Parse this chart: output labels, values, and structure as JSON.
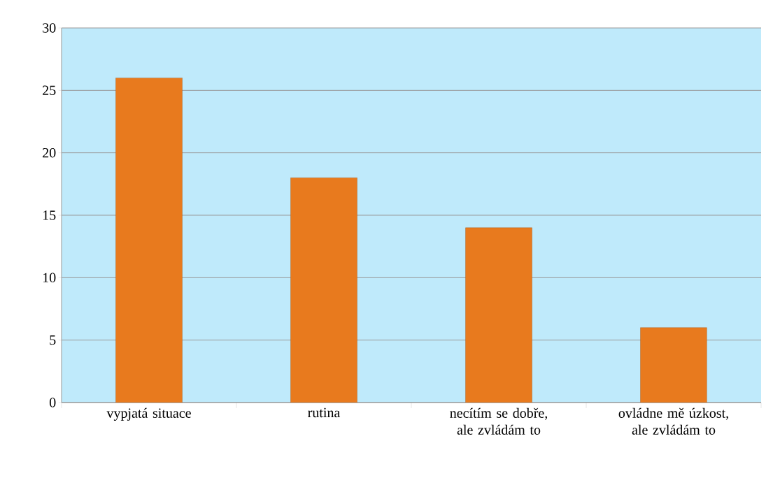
{
  "chart_data": {
    "type": "bar",
    "categories": [
      "vypjatá situace",
      "rutina",
      "necítím se dobře, ale zvládám to",
      "ovládne mě úzkost, ale zvládám to"
    ],
    "values": [
      26,
      18,
      14,
      6
    ],
    "color": "#e87a1e",
    "ylim": [
      0,
      30
    ],
    "yticks": [
      0,
      5,
      10,
      15,
      20,
      25,
      30
    ],
    "grid": "y"
  }
}
